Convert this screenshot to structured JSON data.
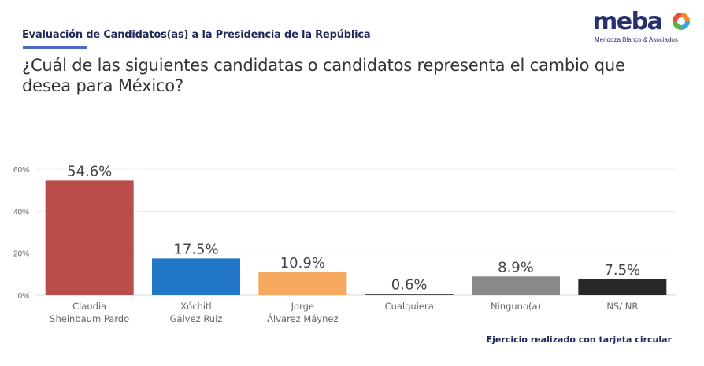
{
  "header": {
    "section_title": "Evaluación de Candidatos(as) a la Presidencia de la República",
    "question": "¿Cuál de las siguientes candidatas o candidatos representa el cambio que desea para México?"
  },
  "logo": {
    "name": "meba",
    "tagline": "Mendoza Blanco & Asociados",
    "icon": "meba-swirl-logo-icon"
  },
  "footnote": "Ejercicio realizado con tarjeta circular",
  "chart_data": {
    "type": "bar",
    "title": "¿Cuál de las siguientes candidatas o candidatos representa el cambio que desea para México?",
    "xlabel": "",
    "ylabel": "",
    "ylim": [
      0,
      60
    ],
    "yticks": [
      0,
      20,
      40,
      60
    ],
    "ytick_labels": [
      "0%",
      "20%",
      "40%",
      "60%"
    ],
    "grid": true,
    "legend": "none",
    "categories": [
      [
        "Claudia",
        "Sheinbaum Pardo"
      ],
      [
        "Xóchitl",
        "Gálvez Ruiz"
      ],
      [
        "Jorge",
        "Álvarez Máynez"
      ],
      [
        "Cualquiera"
      ],
      [
        "Ninguno(a)"
      ],
      [
        "NS/ NR"
      ]
    ],
    "values": [
      54.6,
      17.5,
      10.9,
      0.6,
      8.9,
      7.5
    ],
    "value_labels": [
      "54.6%",
      "17.5%",
      "10.9%",
      "0.6%",
      "8.9%",
      "7.5%"
    ],
    "colors": [
      "#b84d4b",
      "#2377c9",
      "#f6a95e",
      "#555555",
      "#8a8a8a",
      "#282828"
    ]
  }
}
